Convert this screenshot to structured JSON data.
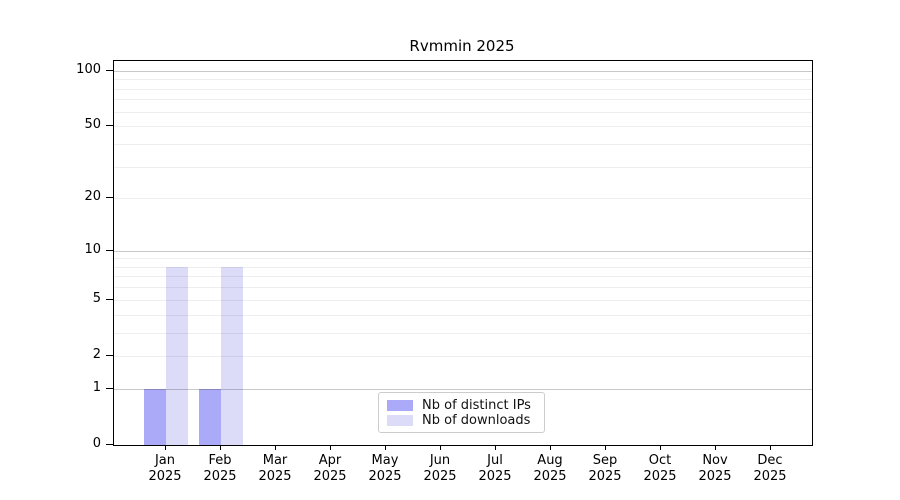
{
  "chart_data": {
    "type": "bar",
    "title": "Rvmmin 2025",
    "categories": [
      {
        "label": "Jan",
        "year": "2025"
      },
      {
        "label": "Feb",
        "year": "2025"
      },
      {
        "label": "Mar",
        "year": "2025"
      },
      {
        "label": "Apr",
        "year": "2025"
      },
      {
        "label": "May",
        "year": "2025"
      },
      {
        "label": "Jun",
        "year": "2025"
      },
      {
        "label": "Jul",
        "year": "2025"
      },
      {
        "label": "Aug",
        "year": "2025"
      },
      {
        "label": "Sep",
        "year": "2025"
      },
      {
        "label": "Oct",
        "year": "2025"
      },
      {
        "label": "Nov",
        "year": "2025"
      },
      {
        "label": "Dec",
        "year": "2025"
      }
    ],
    "series": [
      {
        "name": "Nb of distinct IPs",
        "color": "#aaaaf8",
        "values": [
          1,
          1,
          0,
          0,
          0,
          0,
          0,
          0,
          0,
          0,
          0,
          0
        ]
      },
      {
        "name": "Nb of downloads",
        "color": "#dcdcf8",
        "values": [
          8,
          8,
          0,
          0,
          0,
          0,
          0,
          0,
          0,
          0,
          0,
          0
        ]
      }
    ],
    "y_axis": {
      "scale": "log10(value+1)",
      "tick_values": [
        0,
        1,
        2,
        5,
        10,
        20,
        50,
        100
      ],
      "major_gridlines": [
        1,
        10,
        100
      ],
      "minor_gridlines": [
        2,
        3,
        4,
        5,
        6,
        7,
        8,
        9,
        20,
        30,
        40,
        50,
        60,
        70,
        80,
        90
      ],
      "ylim": [
        0,
        113
      ]
    },
    "xlabel": "",
    "ylabel": "",
    "legend_position": "lower center",
    "grid": true
  }
}
